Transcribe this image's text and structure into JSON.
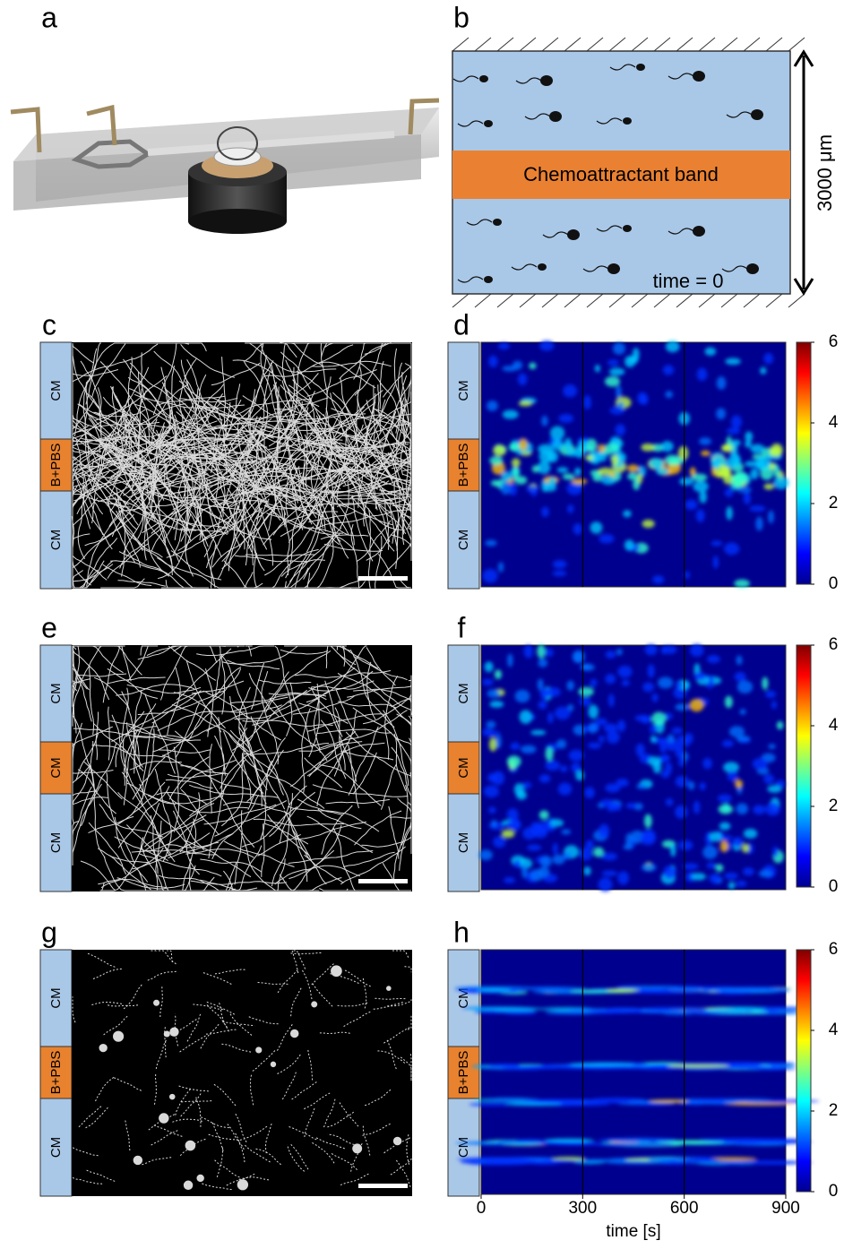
{
  "panel_labels": [
    "a",
    "b",
    "c",
    "d",
    "e",
    "f",
    "g",
    "h"
  ],
  "panel_b": {
    "band_label": "Chemoattractant band",
    "scale_label": "3000 μm",
    "time_label": "time = 0"
  },
  "rows": [
    {
      "segments": [
        "CM",
        "B+PBS",
        "CM"
      ]
    },
    {
      "segments": [
        "CM",
        "CM",
        "CM"
      ]
    },
    {
      "segments": [
        "CM",
        "B+PBS",
        "CM"
      ]
    }
  ],
  "colorbar": {
    "range": [
      0,
      6
    ],
    "ticks": [
      0,
      2,
      4,
      6
    ]
  },
  "time_axis": {
    "label": "time [s]",
    "range": [
      0,
      900
    ],
    "ticks": [
      0,
      300,
      600,
      900
    ]
  }
}
